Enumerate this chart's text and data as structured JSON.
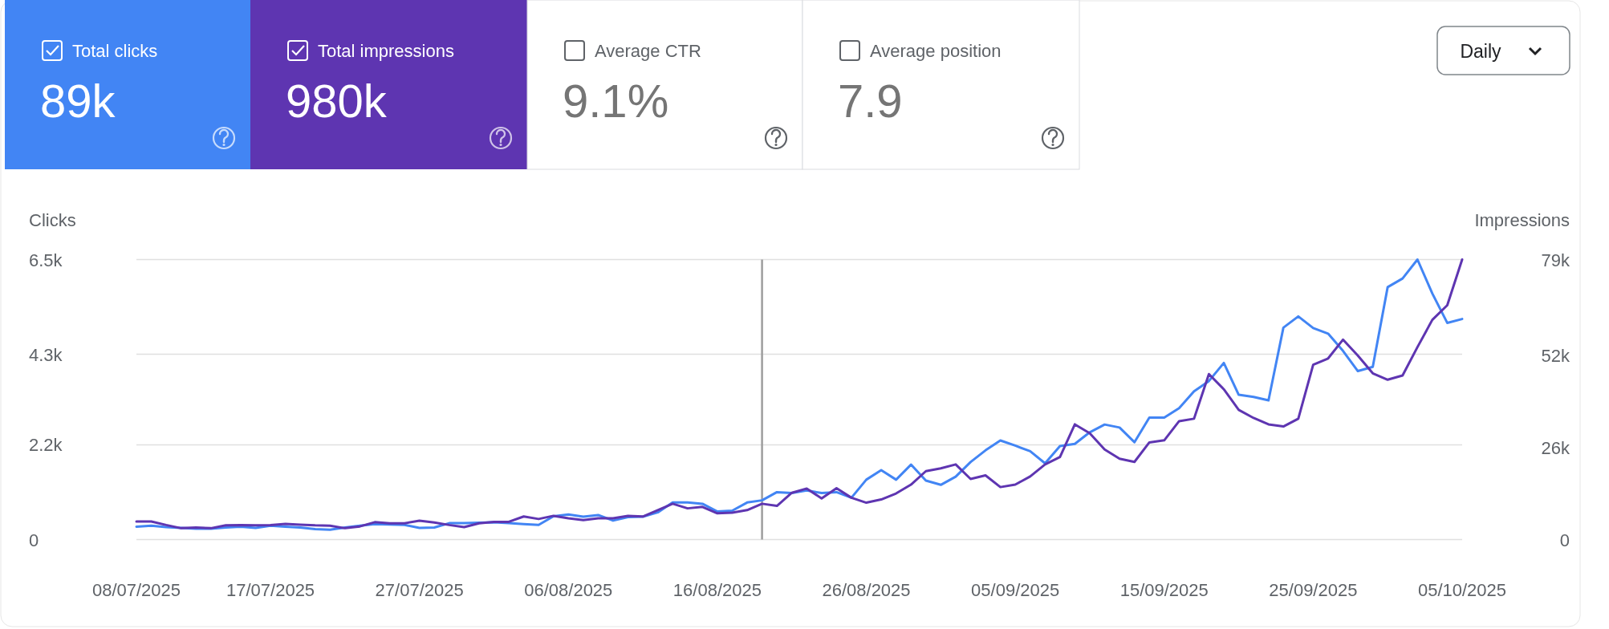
{
  "chart_data": [
    {
      "type": "other",
      "annotations": [
        "Total clicks",
        "89k",
        "Total impressions",
        "980k",
        "Average CTR",
        "9.1%",
        "Average position",
        "7.9",
        "Daily"
      ]
    },
    {
      "type": "line",
      "ylabel": "Clicks",
      "y2label": "Impressions",
      "grid": "y",
      "line_style": "solid",
      "x": [
        "2025-07-08",
        "2025-07-09",
        "2025-07-10",
        "2025-07-11",
        "2025-07-12",
        "2025-07-13",
        "2025-07-14",
        "2025-07-15",
        "2025-07-16",
        "2025-07-17",
        "2025-07-18",
        "2025-07-19",
        "2025-07-20",
        "2025-07-21",
        "2025-07-22",
        "2025-07-23",
        "2025-07-24",
        "2025-07-25",
        "2025-07-26",
        "2025-07-27",
        "2025-07-28",
        "2025-07-29",
        "2025-07-30",
        "2025-07-31",
        "2025-08-01",
        "2025-08-02",
        "2025-08-03",
        "2025-08-04",
        "2025-08-05",
        "2025-08-06",
        "2025-08-07",
        "2025-08-08",
        "2025-08-09",
        "2025-08-10",
        "2025-08-11",
        "2025-08-12",
        "2025-08-13",
        "2025-08-14",
        "2025-08-15",
        "2025-08-16",
        "2025-08-17",
        "2025-08-18",
        "2025-08-19",
        "2025-08-20",
        "2025-08-21",
        "2025-08-22",
        "2025-08-23",
        "2025-08-24",
        "2025-08-25",
        "2025-08-26",
        "2025-08-27",
        "2025-08-28",
        "2025-08-29",
        "2025-08-30",
        "2025-08-31",
        "2025-09-01",
        "2025-09-02",
        "2025-09-03",
        "2025-09-04",
        "2025-09-05",
        "2025-09-06",
        "2025-09-07",
        "2025-09-08",
        "2025-09-09",
        "2025-09-10",
        "2025-09-11",
        "2025-09-12",
        "2025-09-13",
        "2025-09-14",
        "2025-09-15",
        "2025-09-16",
        "2025-09-17",
        "2025-09-18",
        "2025-09-19",
        "2025-09-20",
        "2025-09-21",
        "2025-09-22",
        "2025-09-23",
        "2025-09-24",
        "2025-09-25",
        "2025-09-26",
        "2025-09-27",
        "2025-09-28",
        "2025-09-29",
        "2025-09-30",
        "2025-10-01",
        "2025-10-02",
        "2025-10-03",
        "2025-10-04",
        "2025-10-05"
      ],
      "xlim": [
        "2025-07-08",
        "2025-10-05"
      ],
      "xticks": [
        {
          "value": "2025-07-08",
          "label": "08/07/2025"
        },
        {
          "value": "2025-07-17",
          "label": "17/07/2025"
        },
        {
          "value": "2025-07-27",
          "label": "27/07/2025"
        },
        {
          "value": "2025-08-06",
          "label": "06/08/2025"
        },
        {
          "value": "2025-08-16",
          "label": "16/08/2025"
        },
        {
          "value": "2025-08-26",
          "label": "26/08/2025"
        },
        {
          "value": "2025-09-05",
          "label": "05/09/2025"
        },
        {
          "value": "2025-09-15",
          "label": "15/09/2025"
        },
        {
          "value": "2025-09-25",
          "label": "25/09/2025"
        },
        {
          "value": "2025-10-05",
          "label": "05/10/2025"
        }
      ],
      "ylim": [
        0,
        6500
      ],
      "yticks": [
        0,
        {
          "value": 2200,
          "label": "2.2k"
        },
        {
          "value": 4300,
          "label": "4.3k"
        },
        {
          "value": 6500,
          "label": "6.5k"
        }
      ],
      "y2lim": [
        0,
        79000
      ],
      "y2ticks": [
        0,
        {
          "value": 26000,
          "label": "26k"
        },
        {
          "value": 52000,
          "label": "52k"
        },
        {
          "value": 79000,
          "label": "79k"
        }
      ],
      "ref_lines": [
        {
          "axis": "x",
          "value": "2025-08-19",
          "color": "#9e9e9e"
        }
      ],
      "series": [
        {
          "color": "#4285f4",
          "values": [
            300,
            320,
            290,
            270,
            250,
            250,
            280,
            300,
            270,
            320,
            300,
            280,
            240,
            230,
            280,
            320,
            360,
            350,
            340,
            270,
            280,
            380,
            380,
            390,
            400,
            380,
            360,
            340,
            540,
            580,
            530,
            570,
            440,
            520,
            530,
            630,
            860,
            860,
            830,
            650,
            670,
            860,
            910,
            1100,
            1080,
            1140,
            1080,
            1100,
            970,
            1390,
            1610,
            1390,
            1740,
            1370,
            1270,
            1460,
            1800,
            2070,
            2300,
            2180,
            2050,
            1770,
            2170,
            2220,
            2490,
            2670,
            2600,
            2260,
            2830,
            2830,
            3050,
            3440,
            3680,
            4100,
            3360,
            3310,
            3230,
            4920,
            5180,
            4910,
            4780,
            4380,
            3910,
            4010,
            5860,
            6060,
            6500,
            5710,
            5030,
            5120
          ]
        },
        {
          "color": "#5e35b1",
          "axis": "y2",
          "values": [
            5100,
            5100,
            4100,
            3200,
            3400,
            3200,
            4000,
            4100,
            4000,
            4100,
            4400,
            4200,
            4000,
            3900,
            3200,
            3700,
            4900,
            4600,
            4600,
            5300,
            4800,
            4100,
            3500,
            4600,
            5000,
            5000,
            6500,
            5800,
            6700,
            6000,
            5500,
            6000,
            6000,
            6700,
            6500,
            8300,
            10100,
            8800,
            9200,
            7400,
            7600,
            8300,
            10100,
            9500,
            13200,
            14400,
            11600,
            14500,
            11800,
            10400,
            11300,
            13000,
            15500,
            19300,
            20100,
            21200,
            17100,
            18100,
            14800,
            15500,
            17800,
            21200,
            23300,
            32500,
            30000,
            25400,
            22800,
            21900,
            27400,
            28000,
            33400,
            34100,
            46700,
            42400,
            36600,
            34300,
            32500,
            31900,
            34100,
            49300,
            51100,
            56400,
            51900,
            46900,
            45100,
            46300,
            54300,
            62000,
            66100,
            79000
          ]
        }
      ]
    }
  ]
}
